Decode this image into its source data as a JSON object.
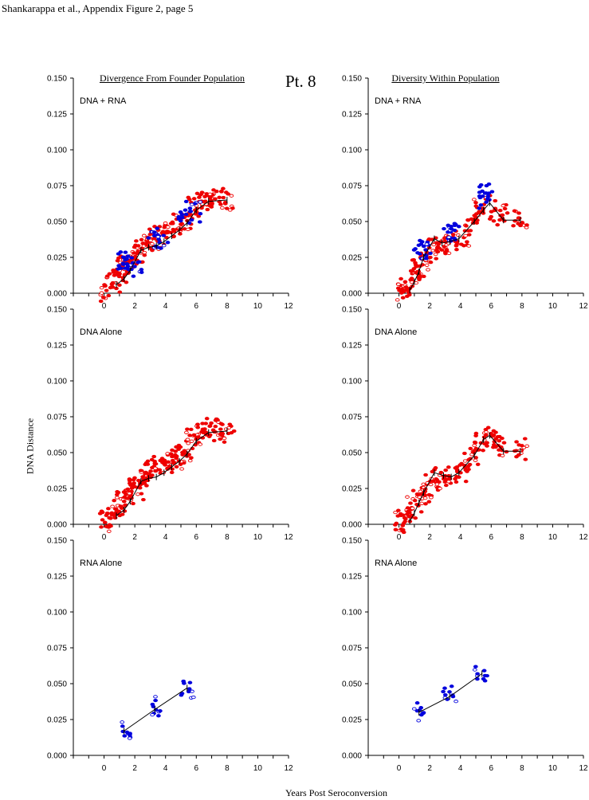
{
  "header": "Shankarappa et al., Appendix Figure 2, page 5",
  "patient": "Pt. 8",
  "column_titles": [
    "Divergence From Founder Population",
    "Diversity Within Population"
  ],
  "y_axis_label": "DNA Distance",
  "x_axis_label": "Years Post Seroconversion",
  "colors": {
    "dna": "#ee0000",
    "rna": "#0000dd",
    "mean_line": "#000000",
    "axis": "#000000"
  },
  "chart_data": [
    {
      "type": "scatter",
      "panel": "DNA + RNA",
      "column": "Divergence From Founder Population",
      "xlim": [
        -2,
        12
      ],
      "ylim": [
        0,
        0.15
      ],
      "xticks": [
        0,
        2,
        4,
        6,
        8,
        10,
        12
      ],
      "yticks": [
        "0.000",
        "0.025",
        "0.050",
        "0.075",
        "0.100",
        "0.125",
        "0.150"
      ],
      "series": [
        {
          "marker": "red",
          "points": [
            [
              0.2,
              0.003
            ],
            [
              0.6,
              0.006
            ],
            [
              1.0,
              0.012
            ],
            [
              1.3,
              0.018
            ],
            [
              1.7,
              0.021
            ],
            [
              2.1,
              0.025
            ],
            [
              2.4,
              0.032
            ],
            [
              2.8,
              0.035
            ],
            [
              3.3,
              0.038
            ],
            [
              3.7,
              0.041
            ],
            [
              4.3,
              0.043
            ],
            [
              4.8,
              0.047
            ],
            [
              5.3,
              0.05
            ],
            [
              5.8,
              0.06
            ],
            [
              6.3,
              0.064
            ],
            [
              6.8,
              0.066
            ],
            [
              7.3,
              0.067
            ],
            [
              8.0,
              0.065
            ]
          ]
        },
        {
          "marker": "blue",
          "points": [
            [
              1.3,
              0.022
            ],
            [
              1.6,
              0.024
            ],
            [
              2.0,
              0.02
            ],
            [
              3.3,
              0.038
            ],
            [
              3.7,
              0.04
            ],
            [
              5.3,
              0.052
            ],
            [
              5.8,
              0.056
            ]
          ]
        }
      ],
      "mean_line": [
        [
          0.8,
          0.006
        ],
        [
          1.3,
          0.01
        ],
        [
          1.7,
          0.016
        ],
        [
          2.4,
          0.03
        ],
        [
          2.9,
          0.032
        ],
        [
          3.4,
          0.033
        ],
        [
          3.9,
          0.036
        ],
        [
          4.4,
          0.04
        ],
        [
          4.9,
          0.044
        ],
        [
          5.4,
          0.049
        ],
        [
          6.0,
          0.058
        ],
        [
          6.8,
          0.064
        ],
        [
          8.0,
          0.065
        ]
      ]
    },
    {
      "type": "scatter",
      "panel": "DNA + RNA",
      "column": "Diversity Within Population",
      "xlim": [
        -2,
        12
      ],
      "ylim": [
        0,
        0.15
      ],
      "xticks": [
        0,
        2,
        4,
        6,
        8,
        10,
        12
      ],
      "yticks": [
        "0.000",
        "0.025",
        "0.050",
        "0.075",
        "0.100",
        "0.125",
        "0.150"
      ],
      "series": [
        {
          "marker": "red",
          "points": [
            [
              0.2,
              0.002
            ],
            [
              0.6,
              0.004
            ],
            [
              1.0,
              0.012
            ],
            [
              1.3,
              0.018
            ],
            [
              1.7,
              0.024
            ],
            [
              2.2,
              0.03
            ],
            [
              2.7,
              0.032
            ],
            [
              3.4,
              0.034
            ],
            [
              4.1,
              0.038
            ],
            [
              4.7,
              0.048
            ],
            [
              5.3,
              0.058
            ],
            [
              5.9,
              0.06
            ],
            [
              6.6,
              0.055
            ],
            [
              7.9,
              0.052
            ]
          ]
        },
        {
          "marker": "blue",
          "points": [
            [
              1.3,
              0.028
            ],
            [
              1.6,
              0.03
            ],
            [
              3.2,
              0.042
            ],
            [
              3.5,
              0.045
            ],
            [
              5.5,
              0.064
            ],
            [
              5.7,
              0.07
            ]
          ]
        }
      ],
      "mean_line": [
        [
          0.7,
          0.002
        ],
        [
          1.0,
          0.008
        ],
        [
          1.3,
          0.015
        ],
        [
          1.6,
          0.025
        ],
        [
          2.3,
          0.038
        ],
        [
          2.8,
          0.035
        ],
        [
          3.3,
          0.036
        ],
        [
          3.9,
          0.038
        ],
        [
          4.9,
          0.05
        ],
        [
          5.5,
          0.058
        ],
        [
          5.9,
          0.063
        ],
        [
          6.8,
          0.051
        ],
        [
          7.9,
          0.051
        ]
      ]
    },
    {
      "type": "scatter",
      "panel": "DNA Alone",
      "column": "Divergence From Founder Population",
      "xlim": [
        -2,
        12
      ],
      "ylim": [
        0,
        0.15
      ],
      "xticks": [
        0,
        2,
        4,
        6,
        8,
        10,
        12
      ],
      "yticks": [
        "0.000",
        "0.025",
        "0.050",
        "0.075",
        "0.100",
        "0.125",
        "0.150"
      ],
      "series": [
        {
          "marker": "red",
          "points": [
            [
              0.2,
              0.003
            ],
            [
              0.6,
              0.006
            ],
            [
              1.0,
              0.012
            ],
            [
              1.3,
              0.018
            ],
            [
              1.7,
              0.021
            ],
            [
              2.1,
              0.025
            ],
            [
              2.4,
              0.032
            ],
            [
              2.8,
              0.035
            ],
            [
              3.3,
              0.038
            ],
            [
              3.7,
              0.041
            ],
            [
              4.3,
              0.043
            ],
            [
              4.8,
              0.047
            ],
            [
              5.3,
              0.05
            ],
            [
              5.8,
              0.06
            ],
            [
              6.3,
              0.064
            ],
            [
              6.8,
              0.066
            ],
            [
              7.3,
              0.067
            ],
            [
              8.0,
              0.065
            ]
          ]
        }
      ],
      "mean_line": [
        [
          0.8,
          0.006
        ],
        [
          1.3,
          0.01
        ],
        [
          1.7,
          0.016
        ],
        [
          2.4,
          0.03
        ],
        [
          2.9,
          0.032
        ],
        [
          3.4,
          0.033
        ],
        [
          3.9,
          0.036
        ],
        [
          4.4,
          0.04
        ],
        [
          4.9,
          0.044
        ],
        [
          5.4,
          0.049
        ],
        [
          6.0,
          0.058
        ],
        [
          6.8,
          0.064
        ],
        [
          8.0,
          0.065
        ]
      ]
    },
    {
      "type": "scatter",
      "panel": "DNA Alone",
      "column": "Diversity Within Population",
      "xlim": [
        -2,
        12
      ],
      "ylim": [
        0,
        0.15
      ],
      "xticks": [
        0,
        2,
        4,
        6,
        8,
        10,
        12
      ],
      "yticks": [
        "0.000",
        "0.025",
        "0.050",
        "0.075",
        "0.100",
        "0.125",
        "0.150"
      ],
      "series": [
        {
          "marker": "red",
          "points": [
            [
              0.2,
              0.002
            ],
            [
              0.6,
              0.004
            ],
            [
              1.0,
              0.012
            ],
            [
              1.3,
              0.018
            ],
            [
              1.7,
              0.024
            ],
            [
              2.2,
              0.03
            ],
            [
              2.7,
              0.032
            ],
            [
              3.4,
              0.034
            ],
            [
              4.1,
              0.038
            ],
            [
              4.7,
              0.048
            ],
            [
              5.3,
              0.058
            ],
            [
              5.9,
              0.06
            ],
            [
              6.6,
              0.055
            ],
            [
              7.9,
              0.052
            ]
          ]
        }
      ],
      "mean_line": [
        [
          0.7,
          0.002
        ],
        [
          1.0,
          0.008
        ],
        [
          1.3,
          0.015
        ],
        [
          1.6,
          0.022
        ],
        [
          2.3,
          0.036
        ],
        [
          2.9,
          0.034
        ],
        [
          3.4,
          0.033
        ],
        [
          3.9,
          0.036
        ],
        [
          4.9,
          0.048
        ],
        [
          5.5,
          0.059
        ],
        [
          5.9,
          0.062
        ],
        [
          6.8,
          0.051
        ],
        [
          7.9,
          0.051
        ]
      ]
    },
    {
      "type": "scatter",
      "panel": "RNA Alone",
      "column": "Divergence From Founder Population",
      "xlim": [
        -2,
        12
      ],
      "ylim": [
        0,
        0.15
      ],
      "xticks": [
        0,
        2,
        4,
        6,
        8,
        10,
        12
      ],
      "yticks": [
        "0.000",
        "0.025",
        "0.050",
        "0.075",
        "0.100",
        "0.125",
        "0.150"
      ],
      "series": [
        {
          "marker": "blue",
          "points": [
            [
              1.3,
              0.018
            ],
            [
              3.3,
              0.033
            ],
            [
              5.4,
              0.047
            ]
          ]
        }
      ],
      "mean_line": [
        [
          1.3,
          0.017
        ],
        [
          3.3,
          0.032
        ],
        [
          5.4,
          0.047
        ]
      ]
    },
    {
      "type": "scatter",
      "panel": "RNA Alone",
      "column": "Diversity Within Population",
      "xlim": [
        -2,
        12
      ],
      "ylim": [
        0,
        0.15
      ],
      "xticks": [
        0,
        2,
        4,
        6,
        8,
        10,
        12
      ],
      "yticks": [
        "0.000",
        "0.025",
        "0.050",
        "0.075",
        "0.100",
        "0.125",
        "0.150"
      ],
      "series": [
        {
          "marker": "blue",
          "points": [
            [
              1.3,
              0.03
            ],
            [
              3.3,
              0.042
            ],
            [
              5.4,
              0.057
            ]
          ]
        }
      ],
      "mean_line": [
        [
          1.3,
          0.03
        ],
        [
          3.3,
          0.041
        ],
        [
          5.4,
          0.057
        ]
      ]
    }
  ]
}
